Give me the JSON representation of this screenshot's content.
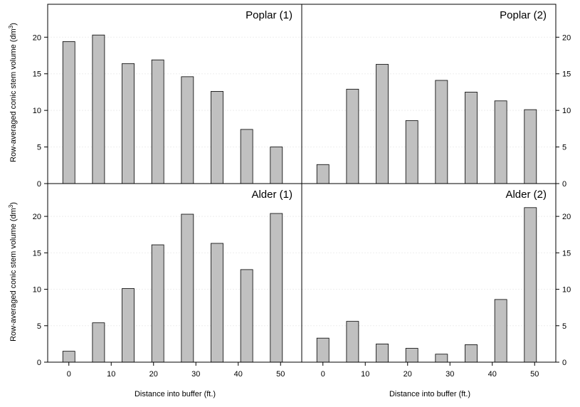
{
  "figure": {
    "ylabel_main": "Row-averaged conic stem volume (dm",
    "ylabel_sup": "3",
    "ylabel_close": ")",
    "xlabel": "Distance into buffer (ft.)"
  },
  "chart_data": [
    {
      "type": "bar",
      "title": "Poplar (1)",
      "x": [
        0,
        7,
        14,
        21,
        28,
        35,
        42,
        49
      ],
      "values": [
        19.4,
        20.3,
        16.4,
        16.9,
        14.6,
        12.6,
        7.4,
        5.0
      ],
      "xticks": [
        "0",
        "10",
        "20",
        "30",
        "40",
        "50"
      ],
      "yticks": [
        "0",
        "5",
        "10",
        "15",
        "20"
      ],
      "ylim": [
        0,
        24.5
      ],
      "xlim": [
        -5,
        55
      ],
      "bar_color": "#c0c0c0",
      "yaxis_side": "left",
      "ylabel": "Row-averaged conic stem volume (dm3)",
      "xlabel": "",
      "grid": false
    },
    {
      "type": "bar",
      "title": "Poplar (2)",
      "x": [
        0,
        7,
        14,
        21,
        28,
        35,
        42,
        49
      ],
      "values": [
        2.6,
        12.9,
        16.3,
        8.6,
        14.1,
        12.5,
        11.3,
        10.1
      ],
      "xticks": [
        "0",
        "10",
        "20",
        "30",
        "40",
        "50"
      ],
      "yticks": [
        "0",
        "5",
        "10",
        "15",
        "20"
      ],
      "ylim": [
        0,
        24.5
      ],
      "xlim": [
        -5,
        55
      ],
      "bar_color": "#c0c0c0",
      "yaxis_side": "right",
      "ylabel": "",
      "xlabel": "",
      "grid": false
    },
    {
      "type": "bar",
      "title": "Alder (1)",
      "x": [
        0,
        7,
        14,
        21,
        28,
        35,
        42,
        49
      ],
      "values": [
        1.5,
        5.4,
        10.1,
        16.1,
        20.3,
        16.3,
        12.7,
        20.4
      ],
      "xticks": [
        "0",
        "10",
        "20",
        "30",
        "40",
        "50"
      ],
      "yticks": [
        "0",
        "5",
        "10",
        "15",
        "20"
      ],
      "ylim": [
        0,
        24.5
      ],
      "xlim": [
        -5,
        55
      ],
      "bar_color": "#c0c0c0",
      "yaxis_side": "left",
      "ylabel": "Row-averaged conic stem volume (dm3)",
      "xlabel": "Distance into buffer (ft.)",
      "grid": false
    },
    {
      "type": "bar",
      "title": "Alder (2)",
      "x": [
        0,
        7,
        14,
        21,
        28,
        35,
        42,
        49
      ],
      "values": [
        3.3,
        5.6,
        2.5,
        1.9,
        1.1,
        2.4,
        8.6,
        21.2
      ],
      "xticks": [
        "0",
        "10",
        "20",
        "30",
        "40",
        "50"
      ],
      "yticks": [
        "0",
        "5",
        "10",
        "15",
        "20"
      ],
      "ylim": [
        0,
        24.5
      ],
      "xlim": [
        -5,
        55
      ],
      "bar_color": "#c0c0c0",
      "yaxis_side": "right",
      "ylabel": "",
      "xlabel": "Distance into buffer (ft.)",
      "grid": false
    }
  ]
}
